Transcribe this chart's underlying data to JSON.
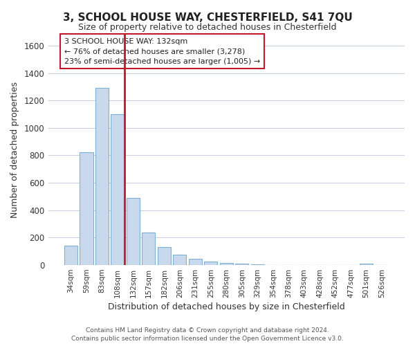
{
  "title": "3, SCHOOL HOUSE WAY, CHESTERFIELD, S41 7QU",
  "subtitle": "Size of property relative to detached houses in Chesterfield",
  "xlabel": "Distribution of detached houses by size in Chesterfield",
  "ylabel": "Number of detached properties",
  "bar_labels": [
    "34sqm",
    "59sqm",
    "83sqm",
    "108sqm",
    "132sqm",
    "157sqm",
    "182sqm",
    "206sqm",
    "231sqm",
    "255sqm",
    "280sqm",
    "305sqm",
    "329sqm",
    "354sqm",
    "378sqm",
    "403sqm",
    "428sqm",
    "452sqm",
    "477sqm",
    "501sqm",
    "526sqm"
  ],
  "bar_values": [
    140,
    820,
    1290,
    1100,
    490,
    235,
    130,
    75,
    48,
    28,
    15,
    8,
    3,
    0,
    0,
    0,
    0,
    0,
    0,
    10,
    0
  ],
  "bar_color": "#c8d9ee",
  "bar_edge_color": "#7bafd4",
  "highlight_index": 4,
  "highlight_color": "#c0182a",
  "ylim": [
    0,
    1680
  ],
  "yticks": [
    0,
    200,
    400,
    600,
    800,
    1000,
    1200,
    1400,
    1600
  ],
  "annotation_line1": "3 SCHOOL HOUSE WAY: 132sqm",
  "annotation_line2": "← 76% of detached houses are smaller (3,278)",
  "annotation_line3": "23% of semi-detached houses are larger (1,005) →",
  "footer_line1": "Contains HM Land Registry data © Crown copyright and database right 2024.",
  "footer_line2": "Contains public sector information licensed under the Open Government Licence v3.0.",
  "background_color": "#ffffff",
  "grid_color": "#c8d0dc"
}
